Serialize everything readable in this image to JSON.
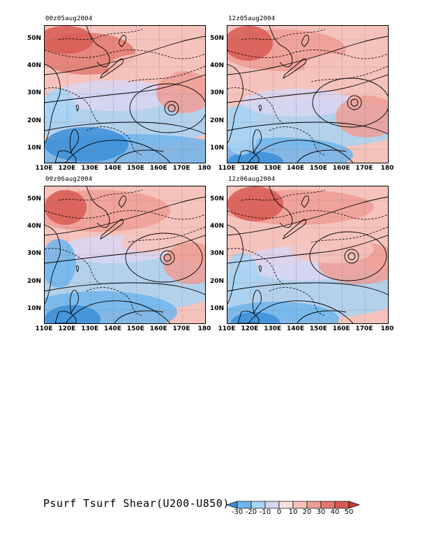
{
  "panels": [
    {
      "title": "00z05aug2004"
    },
    {
      "title": "12z05aug2004"
    },
    {
      "title": "00z06aug2004"
    },
    {
      "title": "12z06aug2004"
    }
  ],
  "axes": {
    "lat_ticks": [
      "50N",
      "40N",
      "30N",
      "20N",
      "10N"
    ],
    "lon_ticks": [
      "110E",
      "120E",
      "130E",
      "140E",
      "150E",
      "160E",
      "170E",
      "180"
    ]
  },
  "legend": {
    "title": "Psurf Tsurf Shear(U200-U850)",
    "levels": [
      "-30",
      "-20",
      "-10",
      "0",
      "10",
      "20",
      "30",
      "40",
      "50"
    ],
    "colors": [
      "#3b8fd9",
      "#6fb5ec",
      "#a8d4f5",
      "#d8d6f2",
      "#fbe0dd",
      "#f6c3bc",
      "#ee9e95",
      "#e27a70",
      "#d85a52",
      "#cc3b35"
    ]
  }
}
